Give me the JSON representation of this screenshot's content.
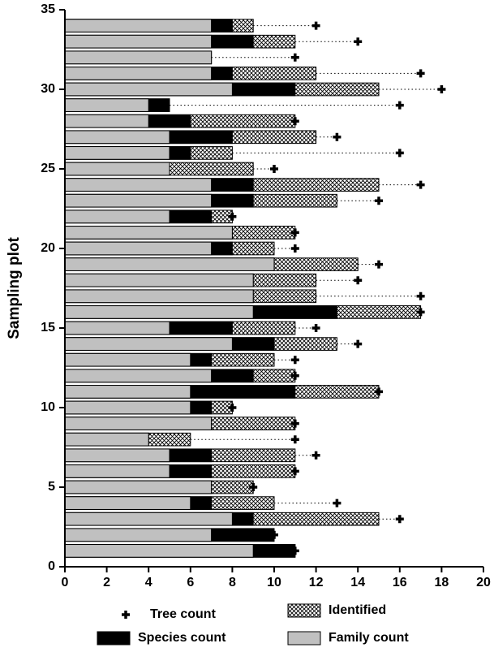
{
  "chart_data": {
    "type": "bar",
    "orientation": "horizontal",
    "overlap": true,
    "ylabel": "Sampling plot",
    "y": [
      1,
      2,
      3,
      4,
      5,
      6,
      7,
      8,
      9,
      10,
      11,
      12,
      13,
      14,
      15,
      16,
      17,
      18,
      19,
      20,
      21,
      22,
      23,
      24,
      25,
      26,
      27,
      28,
      29,
      30,
      31,
      32,
      33,
      34
    ],
    "xlim": [
      0,
      20
    ],
    "xticks": [
      0,
      2,
      4,
      6,
      8,
      10,
      12,
      14,
      16,
      18,
      20
    ],
    "ylim": [
      0,
      35
    ],
    "yticks": [
      0,
      5,
      10,
      15,
      20,
      25,
      30,
      35
    ],
    "series": [
      {
        "name": "Identified",
        "color": "#000000",
        "hatch": "crosshatch",
        "values": [
          11,
          10,
          15,
          10,
          9,
          11,
          11,
          6,
          11,
          8,
          15,
          11,
          10,
          13,
          11,
          17,
          12,
          12,
          14,
          10,
          11,
          8,
          13,
          15,
          9,
          8,
          12,
          11,
          5,
          15,
          12,
          7,
          11,
          9
        ]
      },
      {
        "name": "Species count",
        "color": "#000000",
        "values": [
          11,
          10,
          9,
          7,
          7,
          7,
          7,
          4,
          7,
          7,
          11,
          9,
          7,
          10,
          8,
          13,
          9,
          9,
          10,
          8,
          8,
          7,
          9,
          9,
          5,
          6,
          8,
          6,
          5,
          11,
          8,
          7,
          9,
          8
        ]
      },
      {
        "name": "Family count",
        "color": "#c0c0c0",
        "values": [
          9,
          7,
          8,
          6,
          7,
          5,
          5,
          4,
          7,
          6,
          6,
          7,
          6,
          8,
          5,
          9,
          9,
          9,
          10,
          7,
          8,
          5,
          7,
          7,
          5,
          5,
          5,
          4,
          4,
          8,
          7,
          7,
          7,
          7
        ]
      },
      {
        "name": "Tree count",
        "color": "#000000",
        "marker": "plus",
        "values": [
          11,
          10,
          16,
          13,
          9,
          11,
          12,
          11,
          11,
          8,
          15,
          11,
          11,
          14,
          12,
          17,
          17,
          14,
          15,
          11,
          11,
          8,
          15,
          17,
          10,
          16,
          13,
          11,
          16,
          18,
          17,
          11,
          14,
          12
        ]
      }
    ]
  }
}
